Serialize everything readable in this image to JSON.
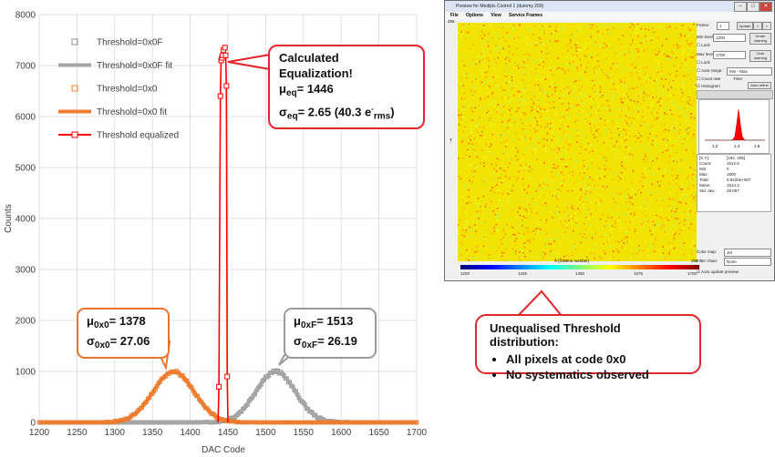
{
  "chart_data": {
    "type": "line",
    "xlabel": "DAC Code",
    "ylabel": "Counts",
    "xlim": [
      1200,
      1700
    ],
    "ylim": [
      0,
      8000
    ],
    "x_ticks": [
      "1200",
      "1250",
      "1300",
      "1350",
      "1400",
      "1450",
      "1500",
      "1550",
      "1600",
      "1650",
      "1700"
    ],
    "y_ticks": [
      "0",
      "1000",
      "2000",
      "3000",
      "4000",
      "5000",
      "6000",
      "7000",
      "8000"
    ],
    "grid": true,
    "legend_position": "top-left",
    "series": [
      {
        "name": "Threshold=0x0F",
        "style": "markers",
        "color": "#8c8c8c",
        "mean": 1513,
        "sigma": 26.19,
        "peak": 1000
      },
      {
        "name": "Threshold=0x0F fit",
        "style": "line",
        "color": "#a6a6a6",
        "mean": 1513,
        "sigma": 26.19,
        "peak": 1000
      },
      {
        "name": "Threshold=0x0",
        "style": "markers",
        "color": "#ed7d31",
        "mean": 1378,
        "sigma": 27.06,
        "peak": 1000
      },
      {
        "name": "Threshold=0x0 fit",
        "style": "line",
        "color": "#ed7d31",
        "mean": 1378,
        "sigma": 27.06,
        "peak": 1000
      },
      {
        "name": "Threshold equalized",
        "style": "line+markers",
        "color": "#ff0000",
        "points": [
          [
            1437,
            0
          ],
          [
            1438,
            700
          ],
          [
            1440,
            6400
          ],
          [
            1441,
            7100
          ],
          [
            1442,
            7150
          ],
          [
            1443,
            7200
          ],
          [
            1444,
            7300
          ],
          [
            1446,
            7350
          ],
          [
            1447,
            7200
          ],
          [
            1448,
            6600
          ],
          [
            1449,
            900
          ],
          [
            1450,
            0
          ]
        ]
      }
    ]
  },
  "annotations": {
    "equalized": {
      "title": "Calculated Equalization!",
      "mu_label": "μ",
      "mu_sub": "eq",
      "mu_value": "= 1446",
      "sigma_label": "σ",
      "sigma_sub": "eq",
      "sigma_value": "= 2.65 (40.3 e",
      "sigma_unit_sup": "-",
      "sigma_unit_sub": "rms",
      "sigma_close": ")"
    },
    "orange": {
      "mu_label": "μ",
      "mu_sub": "0x0",
      "mu_value": "= 1378",
      "sigma_label": "σ",
      "sigma_sub": "0x0",
      "sigma_value": "= 27.06"
    },
    "grey": {
      "mu_label": "μ",
      "mu_sub": "0xF",
      "mu_value": "= 1513",
      "sigma_label": "σ",
      "sigma_sub": "0xF",
      "sigma_value": "= 26.19"
    },
    "unequalised": {
      "title": "Unequalised Threshold distribution:",
      "items": [
        "All pixels at code 0x0",
        "No systematics observed"
      ]
    }
  },
  "preview": {
    "title": "Preview for Medipix Control 1 (dummy 200)",
    "menu": [
      "File",
      "Options",
      "View",
      "Service Frames"
    ],
    "frame_label": "Frame:",
    "frame_value": "1",
    "frame_buttons": [
      "Update",
      "<",
      ">"
    ],
    "min_level_label": "Min level:",
    "min_level_value": "1200",
    "max_level_label": "Max level:",
    "max_level_value": "1700",
    "lock_label": "Lock",
    "under_label": "Under warning",
    "over_label": "Over warning",
    "autorange_label": "Auto-range:",
    "autorange_value": "Min - Max",
    "countrate_label": "Count rate",
    "time_label": "Time:",
    "histogram_label": "Histogram",
    "autorefine_label": "Auto-refine",
    "hist_ticks": [
      "1.2",
      "1.4",
      "1.6"
    ],
    "stats_labels": [
      "[X,Y]:",
      "Count:",
      "Min:",
      "Max:",
      "Total:",
      "Mean:",
      "Std. dev.:"
    ],
    "stats_values": [
      "[192, 206]",
      "1512.8",
      "0",
      "1800",
      "9.9220e+007",
      "1514.2",
      "28.057"
    ],
    "axis_top_left": "256",
    "axis_bottom_right": "256",
    "axis_x_label": "X (column number)",
    "axis_y_label": "Y",
    "colorbar_ticks": [
      "1200",
      "1325",
      "1450",
      "1575",
      "1700"
    ],
    "colormap_label": "Color map:",
    "colormap_value": "Jet",
    "filter_label": "Filter chain:",
    "filter_value": "None",
    "autoupdate_label": "Auto update preview",
    "colors": {
      "heat_base": "#f2e400",
      "heat_hot": "#ff6a00",
      "heat_cool": "#b9f25a"
    }
  }
}
